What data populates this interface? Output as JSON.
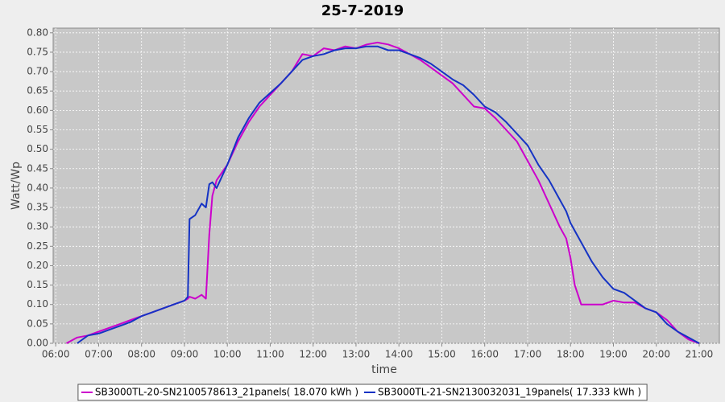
{
  "chart_data": {
    "type": "line",
    "title": "25-7-2019",
    "x_label": "time",
    "y_label": "Watt/Wp",
    "x": [
      6.25,
      6.5,
      6.75,
      7,
      7.25,
      7.5,
      7.75,
      8,
      8.25,
      8.5,
      8.75,
      9,
      9.08,
      9.12,
      9.25,
      9.4,
      9.5,
      9.58,
      9.65,
      9.75,
      10,
      10.25,
      10.5,
      10.75,
      11,
      11.25,
      11.5,
      11.75,
      12,
      12.25,
      12.5,
      12.75,
      13,
      13.25,
      13.5,
      13.75,
      14,
      14.25,
      14.5,
      14.75,
      15,
      15.25,
      15.5,
      15.75,
      16,
      16.25,
      16.5,
      16.75,
      17,
      17.25,
      17.5,
      17.75,
      17.9,
      18,
      18.1,
      18.25,
      18.5,
      18.75,
      19,
      19.25,
      19.5,
      19.75,
      20,
      20.25,
      20.5,
      20.75,
      21
    ],
    "series": [
      {
        "name": "SB3000TL-20-SN2100578613_21panels( 18.070 kWh )",
        "color": "#cc00cc",
        "values": [
          0,
          0.015,
          0.02,
          0.03,
          0.04,
          0.05,
          0.06,
          0.07,
          0.08,
          0.09,
          0.1,
          0.11,
          0.115,
          0.12,
          0.115,
          0.125,
          0.115,
          0.28,
          0.38,
          0.42,
          0.46,
          0.52,
          0.57,
          0.61,
          0.64,
          0.67,
          0.7,
          0.745,
          0.74,
          0.76,
          0.755,
          0.765,
          0.76,
          0.77,
          0.775,
          0.77,
          0.76,
          0.745,
          0.73,
          0.71,
          0.69,
          0.67,
          0.64,
          0.61,
          0.605,
          0.58,
          0.55,
          0.52,
          0.47,
          0.42,
          0.36,
          0.3,
          0.27,
          0.22,
          0.15,
          0.1,
          0.1,
          0.1,
          0.11,
          0.105,
          0.105,
          0.09,
          0.08,
          0.06,
          0.03,
          0.01,
          0
        ]
      },
      {
        "name": "SB3000TL-21-SN2130032031_19panels( 17.333 kWh )",
        "color": "#1533c4",
        "values": [
          null,
          0,
          0.02,
          0.025,
          0.035,
          0.045,
          0.055,
          0.07,
          0.08,
          0.09,
          0.1,
          0.11,
          0.12,
          0.32,
          0.33,
          0.36,
          0.35,
          0.41,
          0.415,
          0.4,
          0.46,
          0.53,
          0.58,
          0.62,
          0.645,
          0.67,
          0.7,
          0.73,
          0.74,
          0.745,
          0.755,
          0.76,
          0.76,
          0.765,
          0.765,
          0.755,
          0.755,
          0.745,
          0.735,
          0.72,
          0.7,
          0.68,
          0.665,
          0.64,
          0.61,
          0.595,
          0.57,
          0.54,
          0.51,
          0.46,
          0.42,
          0.37,
          0.34,
          0.31,
          0.29,
          0.26,
          0.21,
          0.17,
          0.14,
          0.13,
          0.11,
          0.09,
          0.08,
          0.05,
          0.03,
          0.015,
          0
        ]
      }
    ],
    "xlim": [
      5.94,
      21.47
    ],
    "xticks": [
      {
        "value": 6,
        "label": "06:00"
      },
      {
        "value": 7,
        "label": "07:00"
      },
      {
        "value": 8,
        "label": "08:00"
      },
      {
        "value": 9,
        "label": "09:00"
      },
      {
        "value": 10,
        "label": "10:00"
      },
      {
        "value": 11,
        "label": "11:00"
      },
      {
        "value": 12,
        "label": "12:00"
      },
      {
        "value": 13,
        "label": "13:00"
      },
      {
        "value": 14,
        "label": "14:00"
      },
      {
        "value": 15,
        "label": "15:00"
      },
      {
        "value": 16,
        "label": "16:00"
      },
      {
        "value": 17,
        "label": "17:00"
      },
      {
        "value": 18,
        "label": "18:00"
      },
      {
        "value": 19,
        "label": "19:00"
      },
      {
        "value": 20,
        "label": "20:00"
      },
      {
        "value": 21,
        "label": "21:00"
      }
    ],
    "ylim": [
      0,
      0.812
    ],
    "yticks": [
      {
        "value": 0,
        "label": "0.00"
      },
      0.05,
      {
        "value": 0.1,
        "label": "0.10"
      },
      0.15,
      {
        "value": 0.2,
        "label": "0.20"
      },
      0.25,
      {
        "value": 0.3,
        "label": "0.30"
      },
      0.35,
      {
        "value": 0.4,
        "label": "0.40"
      },
      0.45,
      {
        "value": 0.5,
        "label": "0.50"
      },
      0.55,
      {
        "value": 0.6,
        "label": "0.60"
      },
      0.65,
      {
        "value": 0.7,
        "label": "0.70"
      },
      0.75,
      {
        "value": 0.8,
        "label": "0.80"
      }
    ],
    "grid": true,
    "legend": "bottom"
  }
}
